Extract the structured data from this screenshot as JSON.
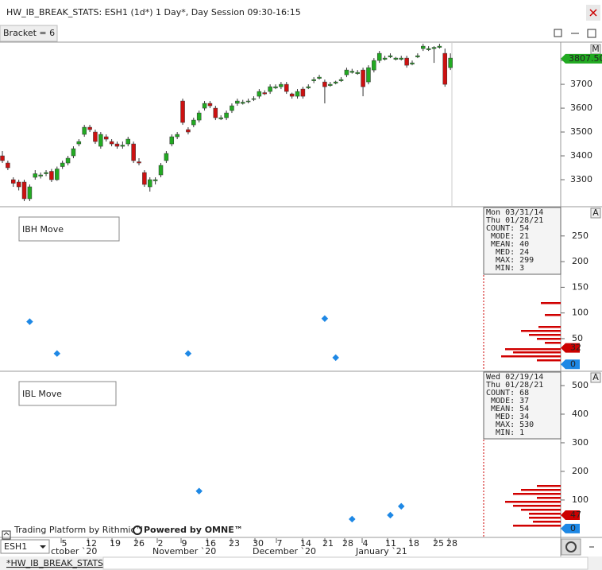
{
  "window": {
    "title": "HW_IB_BREAK_STATS: ESH1 (1d*) 1 Day*, Day Session 09:30-16:15"
  },
  "toolbar": {
    "bracket": "Bracket = 6"
  },
  "price_pane": {
    "mode_button": "M",
    "ylim": [
      3190,
      3877
    ],
    "yticks": [
      3300,
      3400,
      3500,
      3600,
      3700,
      3800
    ],
    "last_price": {
      "value": 3807.5,
      "label": "3807.50"
    },
    "candles": [
      [
        3400,
        3420,
        3370,
        3380
      ],
      [
        3370,
        3380,
        3340,
        3350
      ],
      [
        3300,
        3310,
        3270,
        3285
      ],
      [
        3290,
        3300,
        3255,
        3270
      ],
      [
        3290,
        3300,
        3210,
        3220
      ],
      [
        3220,
        3280,
        3210,
        3270
      ],
      [
        3310,
        3340,
        3300,
        3325
      ],
      [
        3315,
        3330,
        3305,
        3320
      ],
      [
        3325,
        3340,
        3315,
        3330
      ],
      [
        3335,
        3345,
        3290,
        3300
      ],
      [
        3300,
        3355,
        3295,
        3345
      ],
      [
        3355,
        3380,
        3345,
        3370
      ],
      [
        3370,
        3400,
        3360,
        3390
      ],
      [
        3400,
        3440,
        3390,
        3430
      ],
      [
        3450,
        3470,
        3440,
        3460
      ],
      [
        3490,
        3530,
        3480,
        3520
      ],
      [
        3520,
        3530,
        3500,
        3510
      ],
      [
        3500,
        3510,
        3450,
        3460
      ],
      [
        3440,
        3500,
        3430,
        3490
      ],
      [
        3480,
        3490,
        3460,
        3470
      ],
      [
        3460,
        3470,
        3440,
        3450
      ],
      [
        3450,
        3460,
        3430,
        3440
      ],
      [
        3440,
        3460,
        3430,
        3445
      ],
      [
        3450,
        3480,
        3440,
        3470
      ],
      [
        3450,
        3460,
        3370,
        3380
      ],
      [
        3375,
        3390,
        3360,
        3370
      ],
      [
        3330,
        3340,
        3270,
        3280
      ],
      [
        3270,
        3310,
        3250,
        3300
      ],
      [
        3295,
        3310,
        3280,
        3300
      ],
      [
        3320,
        3370,
        3310,
        3360
      ],
      [
        3380,
        3420,
        3370,
        3410
      ],
      [
        3450,
        3490,
        3440,
        3480
      ],
      [
        3480,
        3500,
        3470,
        3490
      ],
      [
        3630,
        3640,
        3530,
        3540
      ],
      [
        3510,
        3520,
        3490,
        3500
      ],
      [
        3530,
        3560,
        3520,
        3550
      ],
      [
        3550,
        3590,
        3540,
        3580
      ],
      [
        3600,
        3630,
        3590,
        3620
      ],
      [
        3620,
        3630,
        3600,
        3610
      ],
      [
        3600,
        3610,
        3550,
        3560
      ],
      [
        3555,
        3570,
        3550,
        3560
      ],
      [
        3560,
        3590,
        3550,
        3580
      ],
      [
        3590,
        3620,
        3580,
        3610
      ],
      [
        3620,
        3640,
        3610,
        3630
      ],
      [
        3620,
        3635,
        3615,
        3625
      ],
      [
        3630,
        3640,
        3620,
        3630
      ],
      [
        3640,
        3650,
        3630,
        3640
      ],
      [
        3650,
        3680,
        3640,
        3670
      ],
      [
        3665,
        3675,
        3655,
        3660
      ],
      [
        3670,
        3700,
        3660,
        3690
      ],
      [
        3685,
        3700,
        3680,
        3690
      ],
      [
        3690,
        3710,
        3680,
        3700
      ],
      [
        3700,
        3710,
        3660,
        3670
      ],
      [
        3660,
        3665,
        3640,
        3650
      ],
      [
        3650,
        3680,
        3640,
        3670
      ],
      [
        3680,
        3690,
        3640,
        3650
      ],
      [
        3685,
        3700,
        3680,
        3690
      ],
      [
        3715,
        3730,
        3705,
        3720
      ],
      [
        3725,
        3740,
        3720,
        3730
      ],
      [
        3710,
        3720,
        3620,
        3690
      ],
      [
        3695,
        3710,
        3690,
        3700
      ],
      [
        3705,
        3715,
        3700,
        3710
      ],
      [
        3715,
        3730,
        3710,
        3720
      ],
      [
        3740,
        3770,
        3730,
        3760
      ],
      [
        3750,
        3765,
        3745,
        3755
      ],
      [
        3745,
        3760,
        3740,
        3750
      ],
      [
        3760,
        3770,
        3650,
        3690
      ],
      [
        3710,
        3780,
        3700,
        3770
      ],
      [
        3760,
        3810,
        3750,
        3800
      ],
      [
        3800,
        3840,
        3790,
        3830
      ],
      [
        3805,
        3820,
        3800,
        3810
      ],
      [
        3815,
        3830,
        3810,
        3820
      ],
      [
        3805,
        3815,
        3800,
        3810
      ],
      [
        3805,
        3820,
        3800,
        3810
      ],
      [
        3810,
        3820,
        3770,
        3780
      ],
      [
        3785,
        3800,
        3780,
        3790
      ],
      [
        3815,
        3830,
        3810,
        3820
      ],
      [
        3850,
        3870,
        3840,
        3860
      ],
      [
        3845,
        3860,
        3840,
        3850
      ],
      [
        3850,
        3860,
        3790,
        3855
      ],
      [
        3855,
        3870,
        3850,
        3860
      ],
      [
        3830,
        3850,
        3690,
        3700
      ],
      [
        3770,
        3830,
        3760,
        3810
      ]
    ]
  },
  "panes": [
    {
      "title": "IBH Move",
      "scale_button": "A",
      "ylim": [
        -12,
        307
      ],
      "yticks": [
        50,
        100,
        150,
        200,
        250
      ],
      "stats": [
        "Mon 03/31/14",
        "Thu 01/28/21",
        "COUNT: 54",
        " MODE: 21",
        " MEAN: 40",
        "  MED: 24",
        "  MAX: 299",
        "  MIN: 3"
      ],
      "dots": [
        {
          "candle": 5,
          "value": 83
        },
        {
          "candle": 10,
          "value": 21
        },
        {
          "candle": 34,
          "value": 21
        },
        {
          "candle": 59,
          "value": 89
        },
        {
          "candle": 61,
          "value": 13
        }
      ],
      "markers": [
        {
          "value": 32,
          "label": "32"
        },
        {
          "value": 0,
          "label": "0"
        }
      ]
    },
    {
      "title": "IBL Move",
      "scale_button": "A",
      "ylim": [
        -28,
        550
      ],
      "yticks": [
        100,
        200,
        300,
        400,
        500
      ],
      "stats": [
        "Wed 02/19/14",
        "Thu 01/28/21",
        "COUNT: 68",
        " MODE: 37",
        " MEAN: 54",
        "  MED: 34",
        "  MAX: 530",
        "  MIN: 1"
      ],
      "dots": [
        {
          "candle": 36,
          "value": 131
        },
        {
          "candle": 64,
          "value": 33
        },
        {
          "candle": 71,
          "value": 47
        },
        {
          "candle": 73,
          "value": 78
        }
      ],
      "markers": [
        {
          "value": 47,
          "label": "47"
        },
        {
          "value": 0,
          "label": "0"
        }
      ]
    }
  ],
  "footer": {
    "rithmic": "Trading Platform by Rithmic™",
    "omne": "Powered by OMNE™"
  },
  "date_axis": {
    "symbol": "ESH1",
    "days": [
      "5",
      "12",
      "19",
      "26",
      "2",
      "9",
      "16",
      "23",
      "30",
      "7",
      "14",
      "21",
      "28",
      "4",
      "11",
      "18",
      "25",
      "28"
    ],
    "months": [
      "ctober `20",
      "November `20",
      "December `20",
      "January `21"
    ]
  },
  "tabs": [
    "*HW_IB_BREAK_STATS"
  ]
}
